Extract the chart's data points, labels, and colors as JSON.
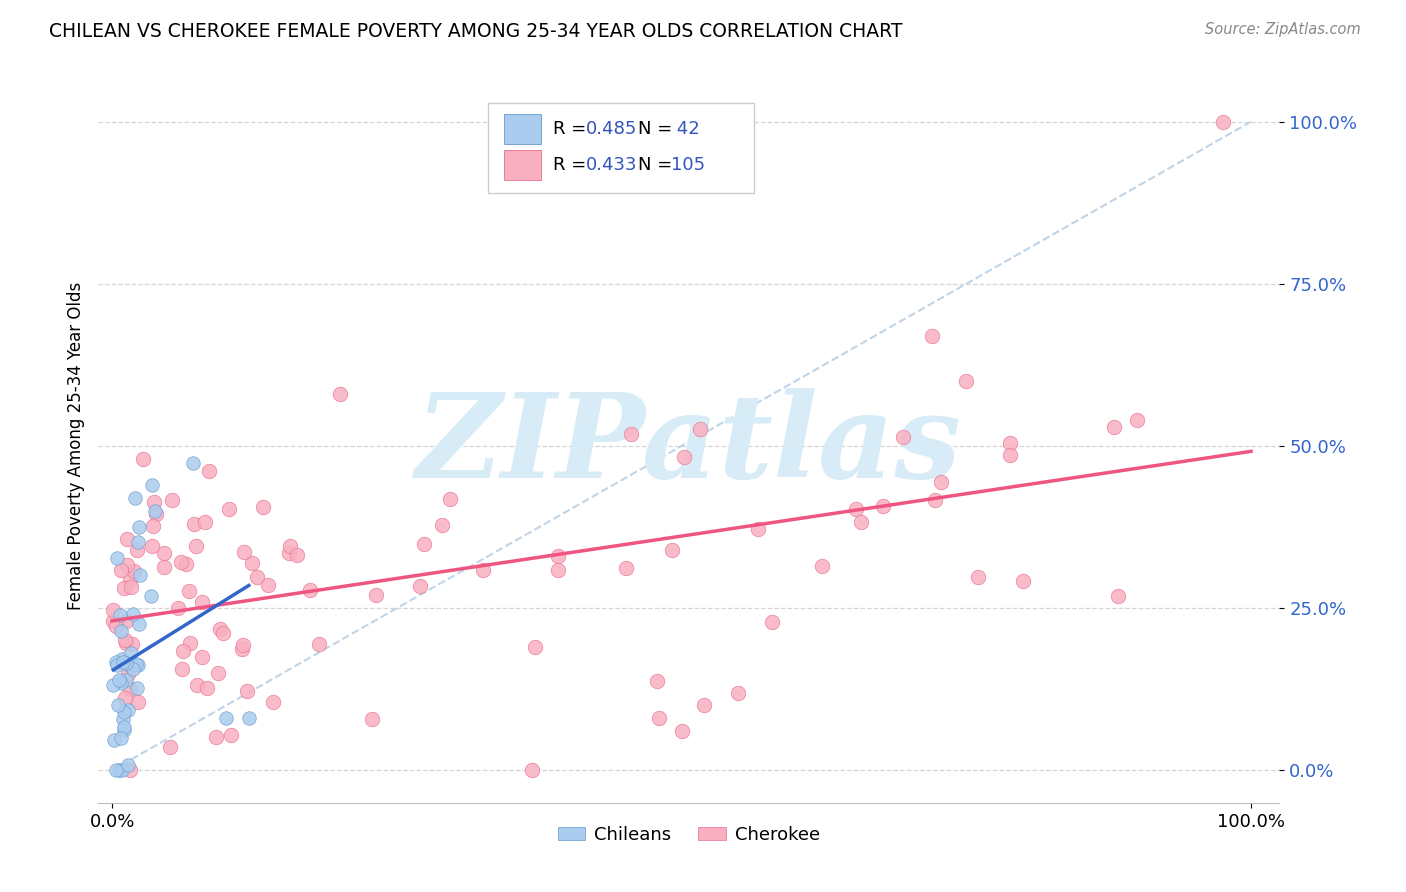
{
  "title": "CHILEAN VS CHEROKEE FEMALE POVERTY AMONG 25-34 YEAR OLDS CORRELATION CHART",
  "source": "Source: ZipAtlas.com",
  "ylabel": "Female Poverty Among 25-34 Year Olds",
  "chilean_R": 0.485,
  "chilean_N": 42,
  "cherokee_R": 0.433,
  "cherokee_N": 105,
  "chilean_color": "#aaccee",
  "cherokee_color": "#f8b0c0",
  "chilean_edge_color": "#6699cc",
  "cherokee_edge_color": "#e87090",
  "chilean_line_color": "#3366cc",
  "cherokee_line_color": "#ee5580",
  "diag_color": "#c0d4e8",
  "ytick_labels": [
    "0.0%",
    "25.0%",
    "50.0%",
    "75.0%",
    "100.0%"
  ],
  "ytick_values": [
    0.0,
    0.25,
    0.5,
    0.75,
    1.0
  ],
  "xtick_labels": [
    "0.0%",
    "100.0%"
  ],
  "xtick_values": [
    0.0,
    1.0
  ],
  "ytick_color": "#3366cc",
  "watermark_text": "ZIPatlas",
  "watermark_color": "#d8ecf8",
  "background_color": "#ffffff",
  "grid_color": "#cccccc",
  "legend_text_color": "#3355bb",
  "legend_label_color": "#333333"
}
